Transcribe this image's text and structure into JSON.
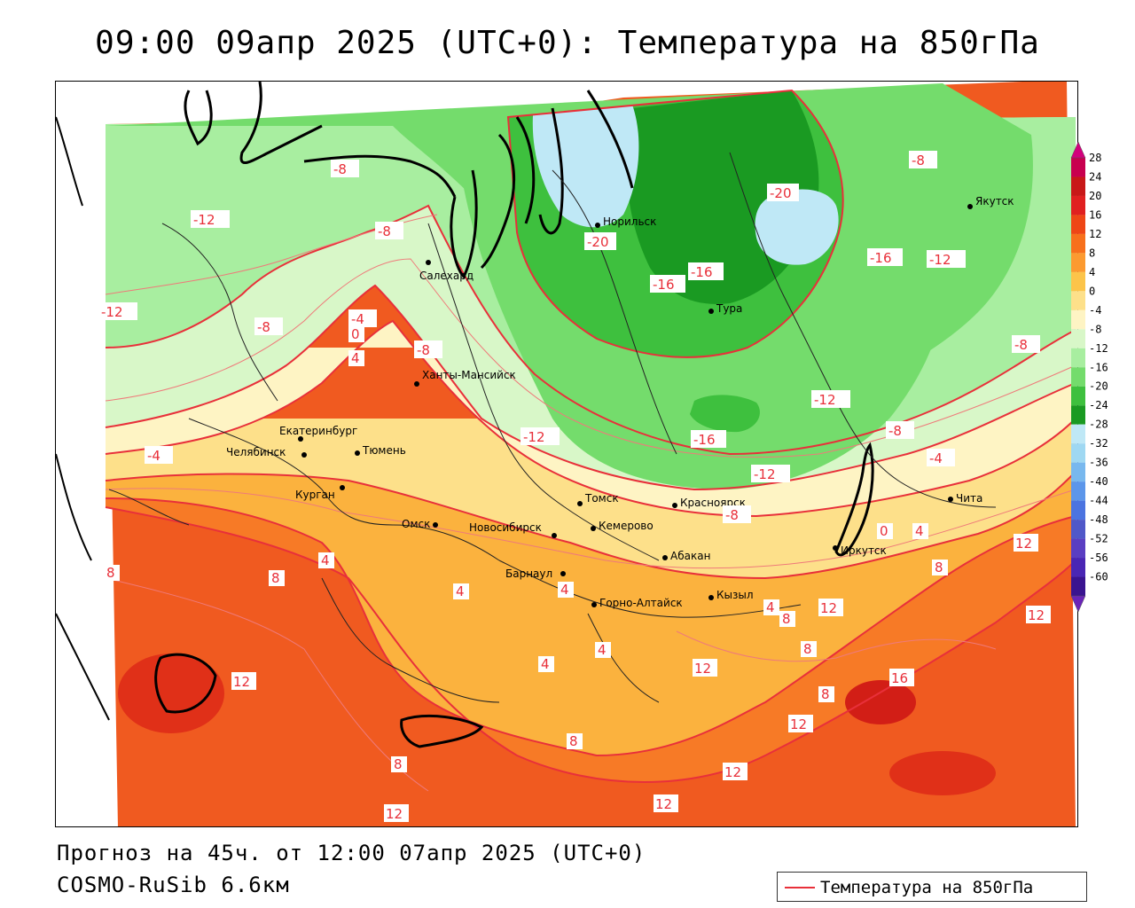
{
  "title": "09:00 09апр 2025 (UTC+0): Температура на 850гПа",
  "forecast_info": "Прогноз на 45ч. от 12:00 07апр 2025 (UTC+0)",
  "model_name": "COSMO-RuSib 6.6км",
  "legend": {
    "label": "Температура на 850гПа",
    "line_color": "#e8303a"
  },
  "colorbar": {
    "ticks": [
      "28",
      "24",
      "20",
      "16",
      "12",
      "8",
      "4",
      "0",
      "-4",
      "-8",
      "-12",
      "-16",
      "-20",
      "-24",
      "-28",
      "-32",
      "-36",
      "-40",
      "-44",
      "-48",
      "-52",
      "-56",
      "-60"
    ],
    "colors": [
      "#c8004f",
      "#c81818",
      "#e02020",
      "#ee4616",
      "#f7701c",
      "#fc9a30",
      "#fcc44a",
      "#fde08a",
      "#fef4c4",
      "#d8f7c8",
      "#a8eea0",
      "#74dc6c",
      "#3ec03e",
      "#1a9a22",
      "#bfe8f6",
      "#9fd8f2",
      "#78b8ee",
      "#5c96ea",
      "#4c74e0",
      "#5058c8",
      "#5a3ec2",
      "#4a26b4",
      "#3a1490"
    ],
    "top_arrow_color": "#d2007c",
    "bottom_arrow_color": "#6a24b8"
  },
  "cities": [
    {
      "name": "Норильск"
    },
    {
      "name": "Якутск"
    },
    {
      "name": "Салехард"
    },
    {
      "name": "Тура"
    },
    {
      "name": "Ханты-Мансийск"
    },
    {
      "name": "Екатеринбург"
    },
    {
      "name": "Тюмень"
    },
    {
      "name": "Челябинск"
    },
    {
      "name": "Курган"
    },
    {
      "name": "Томск"
    },
    {
      "name": "Красноярск"
    },
    {
      "name": "Омск"
    },
    {
      "name": "Новосибирск"
    },
    {
      "name": "Кемерово"
    },
    {
      "name": "Абакан"
    },
    {
      "name": "Барнаул"
    },
    {
      "name": "Горно-Алтайск"
    },
    {
      "name": "Кызыл"
    },
    {
      "name": "Иркутск"
    },
    {
      "name": "Чита"
    }
  ],
  "contour_labels": [
    {
      "text": "-20"
    },
    {
      "text": "-20"
    },
    {
      "text": "-16"
    },
    {
      "text": "-16"
    },
    {
      "text": "-16"
    },
    {
      "text": "-16"
    },
    {
      "text": "-12"
    },
    {
      "text": "-12"
    },
    {
      "text": "-12"
    },
    {
      "text": "-12"
    },
    {
      "text": "-12"
    },
    {
      "text": "-12"
    },
    {
      "text": "-8"
    },
    {
      "text": "-8"
    },
    {
      "text": "-8"
    },
    {
      "text": "-8"
    },
    {
      "text": "-8"
    },
    {
      "text": "-8"
    },
    {
      "text": "-8"
    },
    {
      "text": "-8"
    },
    {
      "text": "-4"
    },
    {
      "text": "-4"
    },
    {
      "text": "-4"
    },
    {
      "text": "0"
    },
    {
      "text": "0"
    },
    {
      "text": "4"
    },
    {
      "text": "4"
    },
    {
      "text": "4"
    },
    {
      "text": "4"
    },
    {
      "text": "4"
    },
    {
      "text": "4"
    },
    {
      "text": "4"
    },
    {
      "text": "4"
    },
    {
      "text": "8"
    },
    {
      "text": "8"
    },
    {
      "text": "8"
    },
    {
      "text": "8"
    },
    {
      "text": "8"
    },
    {
      "text": "8"
    },
    {
      "text": "8"
    },
    {
      "text": "8"
    },
    {
      "text": "12"
    },
    {
      "text": "12"
    },
    {
      "text": "12"
    },
    {
      "text": "12"
    },
    {
      "text": "12"
    },
    {
      "text": "12"
    },
    {
      "text": "12"
    },
    {
      "text": "12"
    },
    {
      "text": "12"
    },
    {
      "text": "16"
    }
  ]
}
